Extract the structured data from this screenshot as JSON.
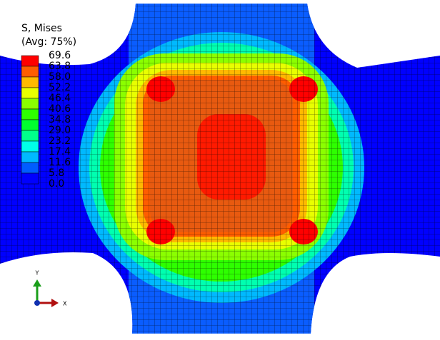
{
  "legend": {
    "title": "S, Mises",
    "subtitle": "(Avg: 75%)",
    "levels": [
      "69.6",
      "63.8",
      "58.0",
      "52.2",
      "46.4",
      "40.6",
      "34.8",
      "29.0",
      "23.2",
      "17.4",
      "11.6",
      "5.8",
      "0.0"
    ],
    "colors": [
      "#ff0000",
      "#ff5d00",
      "#ffb900",
      "#e8ff00",
      "#8bff00",
      "#2eff00",
      "#00ff2e",
      "#00ff8b",
      "#00ffe8",
      "#00b9ff",
      "#005dff",
      "#0000ff"
    ]
  },
  "triad": {
    "y_label": "Y",
    "x_label": "X"
  }
}
